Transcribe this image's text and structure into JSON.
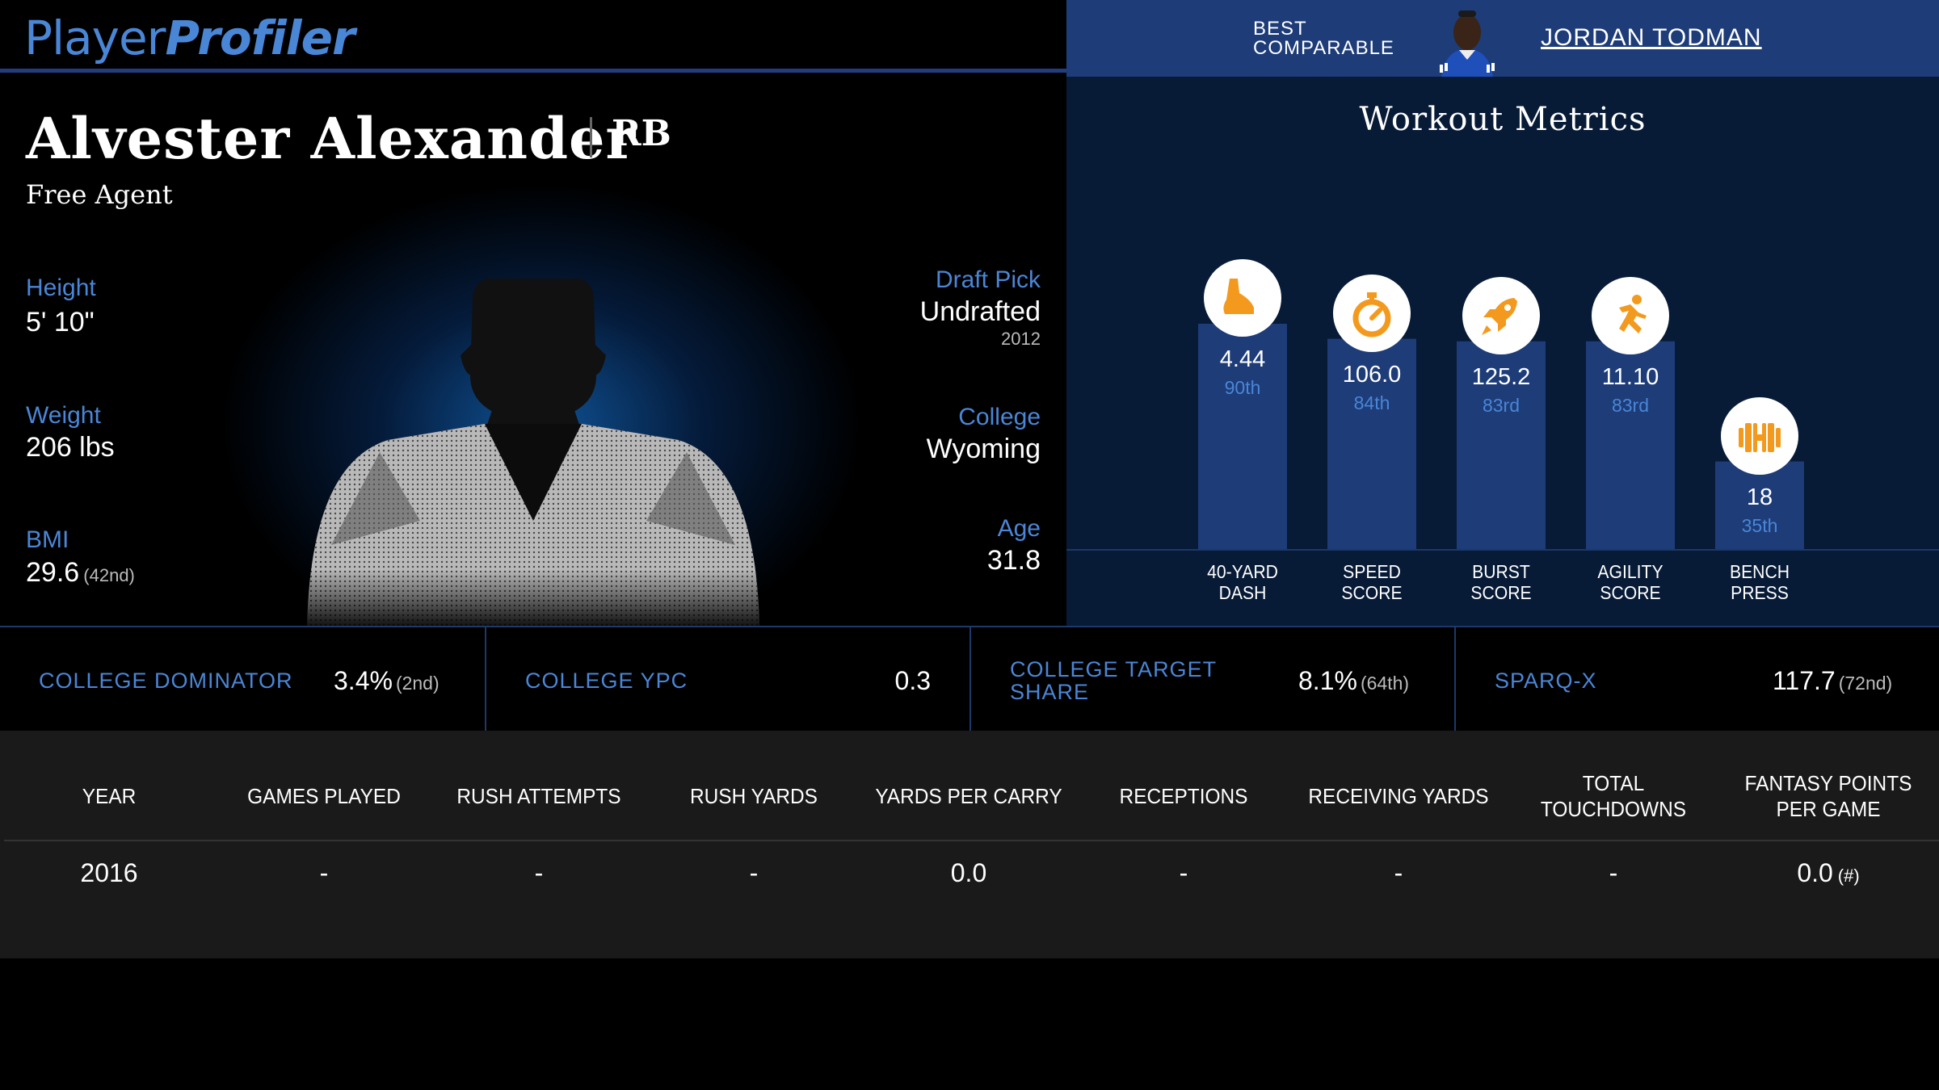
{
  "header": {
    "logo_part1": "Player",
    "logo_part2": "Profiler",
    "best_comparable_line1": "BEST",
    "best_comparable_line2": "COMPARABLE",
    "comparable_name": "JORDAN TODMAN"
  },
  "player": {
    "name": "Alvester Alexander",
    "position": "RB",
    "team": "Free Agent",
    "height_label": "Height",
    "height": "5' 10\"",
    "weight_label": "Weight",
    "weight": "206 lbs",
    "bmi_label": "BMI",
    "bmi": "29.6",
    "bmi_rank": "(42nd)",
    "draft_label": "Draft Pick",
    "draft": "Undrafted",
    "draft_year": "2012",
    "college_label": "College",
    "college": "Wyoming",
    "age_label": "Age",
    "age": "31.8"
  },
  "workout": {
    "title": "Workout Metrics",
    "metrics": [
      {
        "label1": "40-YARD",
        "label2": "DASH",
        "value": "4.44",
        "percentile_text": "90th",
        "percentile": 90,
        "icon": "shoe-icon"
      },
      {
        "label1": "SPEED",
        "label2": "SCORE",
        "value": "106.0",
        "percentile_text": "84th",
        "percentile": 84,
        "icon": "stopwatch-icon"
      },
      {
        "label1": "BURST",
        "label2": "SCORE",
        "value": "125.2",
        "percentile_text": "83rd",
        "percentile": 83,
        "icon": "rocket-icon"
      },
      {
        "label1": "AGILITY",
        "label2": "SCORE",
        "value": "11.10",
        "percentile_text": "83rd",
        "percentile": 83,
        "icon": "runner-icon"
      },
      {
        "label1": "BENCH",
        "label2": "PRESS",
        "value": "18",
        "percentile_text": "35th",
        "percentile": 35,
        "icon": "dumbbell-icon"
      }
    ],
    "bar_color": "#1d3c78",
    "icon_color": "#f39a1e"
  },
  "keystats": [
    {
      "label": "COLLEGE DOMINATOR",
      "value": "3.4%",
      "rank": "(2nd)"
    },
    {
      "label": "COLLEGE YPC",
      "value": "0.3",
      "rank": ""
    },
    {
      "label1": "COLLEGE TARGET",
      "label2": "SHARE",
      "value": "8.1%",
      "rank": "(64th)"
    },
    {
      "label": "SPARQ-X",
      "value": "117.7",
      "rank": "(72nd)"
    }
  ],
  "table": {
    "headers": [
      "YEAR",
      "GAMES PLAYED",
      "RUSH ATTEMPTS",
      "RUSH YARDS",
      "YARDS PER CARRY",
      "RECEPTIONS",
      "RECEIVING YARDS",
      "TOTAL TOUCHDOWNS",
      "FANTASY POINTS PER GAME"
    ],
    "rows": [
      {
        "cells": [
          "2016",
          "-",
          "-",
          "-",
          "0.0",
          "-",
          "-",
          "-",
          "0.0"
        ],
        "fp_rank": "(#)"
      }
    ]
  },
  "colors": {
    "accent": "#4a86d6",
    "header_blue": "#1d3c78",
    "panel_dark": "#071a36",
    "orange": "#f39a1e"
  }
}
